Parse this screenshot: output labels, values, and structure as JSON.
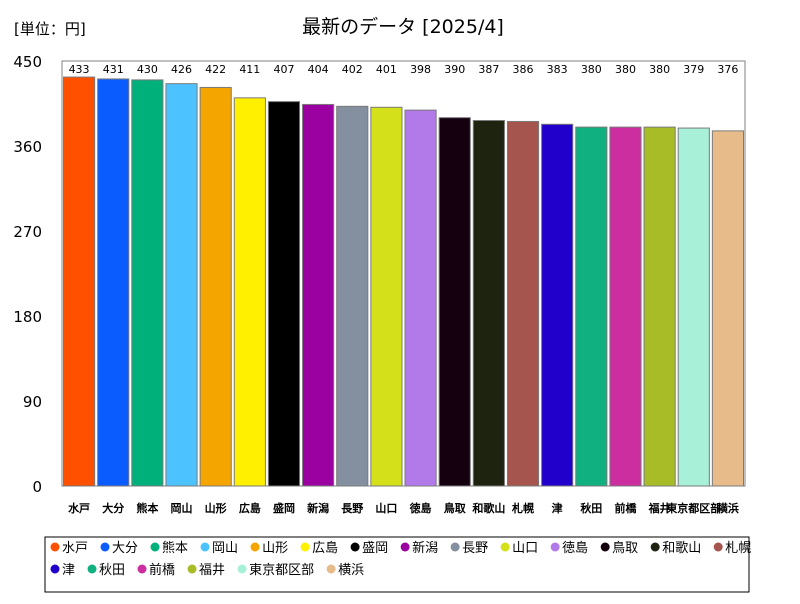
{
  "chart_data": {
    "type": "bar",
    "title": "最新のデータ [2025/4]",
    "unit_label": "[単位：円]",
    "ylim": [
      0,
      450
    ],
    "yticks": [
      0,
      90,
      180,
      270,
      360,
      450
    ],
    "grid": false,
    "legend_position": "bottom",
    "categories": [
      "水戸",
      "大分",
      "熊本",
      "岡山",
      "山形",
      "広島",
      "盛岡",
      "新潟",
      "長野",
      "山口",
      "徳島",
      "鳥取",
      "和歌山",
      "札幌",
      "津",
      "秋田",
      "前橋",
      "福井",
      "東京都区部",
      "横浜"
    ],
    "values": [
      433,
      431,
      430,
      426,
      422,
      411,
      407,
      404,
      402,
      401,
      398,
      390,
      387,
      386,
      383,
      380,
      380,
      380,
      379,
      376
    ],
    "colors": [
      "#ff5000",
      "#0a5cff",
      "#00b07a",
      "#4cc3ff",
      "#f5a500",
      "#fff000",
      "#000000",
      "#9b00a0",
      "#8490a0",
      "#d3e01a",
      "#b27ae8",
      "#14000f",
      "#1e2310",
      "#a5554e",
      "#2200cc",
      "#10b080",
      "#cc2ea0",
      "#a8bc28",
      "#a8f0d8",
      "#e8bb8a"
    ]
  }
}
